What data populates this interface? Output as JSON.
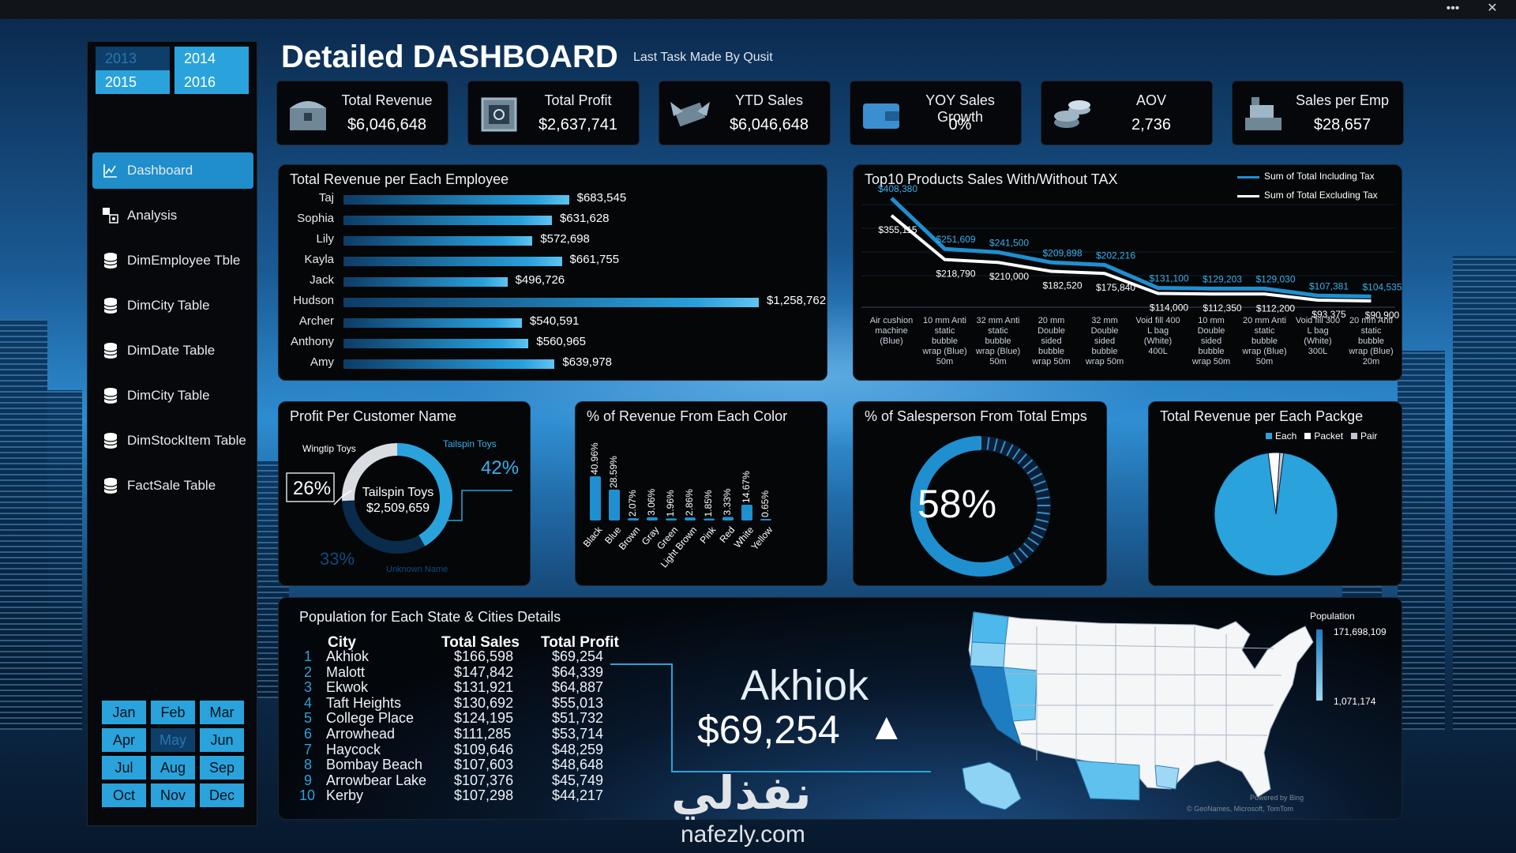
{
  "window": {
    "more_label": "•••",
    "close_label": "✕"
  },
  "header": {
    "title": "Detailed DASHBOARD",
    "subtitle": "Last Task Made By Qusit"
  },
  "years": [
    {
      "label": "2013",
      "selected": false
    },
    {
      "label": "2014",
      "selected": true
    },
    {
      "label": "2015",
      "selected": true
    },
    {
      "label": "2016",
      "selected": true
    }
  ],
  "nav": [
    {
      "label": "Dashboard",
      "icon": "chart-icon",
      "active": true
    },
    {
      "label": "Analysis",
      "icon": "analysis-icon",
      "active": false
    },
    {
      "label": "DimEmployee Tble",
      "icon": "database-icon",
      "active": false
    },
    {
      "label": "DimCity Table",
      "icon": "database-icon",
      "active": false
    },
    {
      "label": "DimDate Table",
      "icon": "database-icon",
      "active": false
    },
    {
      "label": "DimCity Table",
      "icon": "database-icon",
      "active": false
    },
    {
      "label": "DimStockItem Table",
      "icon": "database-icon",
      "active": false
    },
    {
      "label": "FactSale Table",
      "icon": "database-icon",
      "active": false
    }
  ],
  "months": [
    {
      "label": "Jan",
      "selected": true
    },
    {
      "label": "Feb",
      "selected": true
    },
    {
      "label": "Mar",
      "selected": true
    },
    {
      "label": "Apr",
      "selected": true
    },
    {
      "label": "May",
      "selected": false
    },
    {
      "label": "Jun",
      "selected": true
    },
    {
      "label": "Jul",
      "selected": true
    },
    {
      "label": "Aug",
      "selected": true
    },
    {
      "label": "Sep",
      "selected": true
    },
    {
      "label": "Oct",
      "selected": true
    },
    {
      "label": "Nov",
      "selected": true
    },
    {
      "label": "Dec",
      "selected": true
    }
  ],
  "kpis": [
    {
      "label": "Total Revenue",
      "value": "$6,046,648",
      "icon": "treasure-chest-icon"
    },
    {
      "label": "Total Profit",
      "value": "$2,637,741",
      "icon": "safe-icon"
    },
    {
      "label": "YTD Sales",
      "value": "$6,046,648",
      "icon": "flying-money-icon"
    },
    {
      "label": "YOY Sales Growth",
      "value": "0%",
      "icon": "wallet-icon"
    },
    {
      "label": "AOV",
      "value": "2,736",
      "icon": "coins-icon"
    },
    {
      "label": "Sales per Emp",
      "value": "$28,657",
      "icon": "cash-register-icon"
    }
  ],
  "employee_panel": {
    "title": "Total Revenue per Each Employee"
  },
  "products_panel": {
    "title": "Top10 Products Sales With/Without TAX",
    "legend_incl": "Sum of Total Including Tax",
    "legend_excl": "Sum of Total Excluding Tax"
  },
  "customer_panel": {
    "title": "Profit Per Customer Name",
    "left_label": "Wingtip Toys",
    "right_label": "Tailspin Toys",
    "left_pct": "26%",
    "right_pct": "42%",
    "bottom_pct": "33%",
    "bottom_label": "Unknown Name",
    "center_name": "Tailspin Toys",
    "center_value": "$2,509,659"
  },
  "color_panel": {
    "title": "% of Revenue From Each Color"
  },
  "salesperson_panel": {
    "title": "% of Salesperson From Total Emps",
    "value": "58%"
  },
  "package_panel": {
    "title": "Total Revenue per Each Packge",
    "legend": [
      "Each",
      "Packet",
      "Pair"
    ]
  },
  "population_panel": {
    "title": "Population  for Each State & Cities Details",
    "col_city": "City",
    "col_sales": "Total Sales",
    "col_profit": "Total Profit",
    "rows": [
      {
        "rank": "1",
        "city": "Akhiok",
        "sales": "$166,598",
        "profit": "$69,254"
      },
      {
        "rank": "2",
        "city": "Malott",
        "sales": "$147,842",
        "profit": "$64,339"
      },
      {
        "rank": "3",
        "city": "Ekwok",
        "sales": "$131,921",
        "profit": "$64,887"
      },
      {
        "rank": "4",
        "city": "Taft Heights",
        "sales": "$130,692",
        "profit": "$55,013"
      },
      {
        "rank": "5",
        "city": "College Place",
        "sales": "$124,195",
        "profit": "$51,732"
      },
      {
        "rank": "6",
        "city": "Arrowhead",
        "sales": "$111,285",
        "profit": "$53,714"
      },
      {
        "rank": "7",
        "city": "Haycock",
        "sales": "$109,646",
        "profit": "$48,259"
      },
      {
        "rank": "8",
        "city": "Bombay Beach",
        "sales": "$107,603",
        "profit": "$48,648"
      },
      {
        "rank": "9",
        "city": "Arrowbear Lake",
        "sales": "$107,376",
        "profit": "$45,749"
      },
      {
        "rank": "10",
        "city": "Kerby",
        "sales": "$107,298",
        "profit": "$44,217"
      }
    ],
    "highlight_city": "Akhiok",
    "highlight_value": "$69,254",
    "highlight_arrow": "▲",
    "map_legend_title": "Population",
    "map_legend_max": "171,698,109",
    "map_legend_min": "1,071,174",
    "map_credit_1": "Powered by Bing",
    "map_credit_2": "© GeoNames, Microsoft, TomTom"
  },
  "watermark": {
    "arabic": "نفذلي",
    "latin": "nafezly.com"
  },
  "chart_data": [
    {
      "type": "bar",
      "title": "Total Revenue per Each Employee",
      "categories": [
        "Taj",
        "Sophia",
        "Lily",
        "Kayla",
        "Jack",
        "Hudson",
        "Archer",
        "Anthony",
        "Amy"
      ],
      "values": [
        683545,
        631628,
        572698,
        661755,
        496726,
        1258762,
        540591,
        560965,
        639978
      ],
      "labels": [
        "$683,545",
        "$631,628",
        "$572,698",
        "$661,755",
        "$496,726",
        "$1,258,762",
        "$540,591",
        "$560,965",
        "$639,978"
      ],
      "orientation": "horizontal"
    },
    {
      "type": "line",
      "title": "Top10 Products Sales With/Without TAX",
      "categories": [
        [
          "Air cushion",
          "machine",
          "(Blue)"
        ],
        [
          "10 mm Anti",
          "static",
          "bubble",
          "wrap (Blue)",
          "50m"
        ],
        [
          "32 mm Anti",
          "static",
          "bubble",
          "wrap (Blue)",
          "50m"
        ],
        [
          "20 mm",
          "Double",
          "sided",
          "bubble",
          "wrap 50m"
        ],
        [
          "32 mm",
          "Double",
          "sided",
          "bubble",
          "wrap 50m"
        ],
        [
          "Void fill 400",
          "L bag",
          "(White)",
          "400L"
        ],
        [
          "10 mm",
          "Double",
          "sided",
          "bubble",
          "wrap 50m"
        ],
        [
          "20 mm Anti",
          "static",
          "bubble",
          "wrap (Blue)",
          "50m"
        ],
        [
          "Void fill 300",
          "L bag",
          "(White)",
          "300L"
        ],
        [
          "20 mm Anti",
          "static",
          "bubble",
          "wrap (Blue)",
          "20m"
        ]
      ],
      "series": [
        {
          "name": "Sum of Total Including Tax",
          "values": [
            408380,
            251609,
            241500,
            209898,
            202216,
            131100,
            129203,
            129030,
            107381,
            104535
          ],
          "labels": [
            "$408,380",
            "$251,609",
            "$241,500",
            "$209,898",
            "$202,216",
            "$131,100",
            "$129,203",
            "$129,030",
            "$107,381",
            "$104,535"
          ],
          "color": "#1f8fd0"
        },
        {
          "name": "Sum of Total Excluding Tax",
          "values": [
            355115,
            218790,
            210000,
            182520,
            175840,
            114000,
            112350,
            112200,
            93375,
            90900
          ],
          "labels": [
            "$355,115",
            "$218,790",
            "$210,000",
            "$182,520",
            "$175,840",
            "$114,000",
            "$112,350",
            "$112,200",
            "$93,375",
            "$90,900"
          ],
          "color": "#ffffff"
        }
      ]
    },
    {
      "type": "pie",
      "title": "Profit Per Customer Name",
      "categories": [
        "Tailspin Toys",
        "Unknown Name",
        "Wingtip Toys"
      ],
      "values": [
        42,
        33,
        26
      ]
    },
    {
      "type": "bar",
      "title": "% of Revenue From Each Color",
      "categories": [
        "Black",
        "Blue",
        "Brown",
        "Gray",
        "Green",
        "Light Brown",
        "Pink",
        "Red",
        "White",
        "Yellow"
      ],
      "values": [
        40.96,
        28.59,
        2.07,
        3.06,
        1.96,
        2.86,
        1.85,
        3.33,
        14.67,
        0.65
      ],
      "labels": [
        "40.96%",
        "28.59%",
        "2.07%",
        "3.06%",
        "1.96%",
        "2.86%",
        "1.85%",
        "3.33%",
        "14.67%",
        "0.65%"
      ]
    },
    {
      "type": "pie",
      "title": "% of Salesperson From Total Emps",
      "values": [
        58,
        42
      ]
    },
    {
      "type": "pie",
      "title": "Total Revenue per Each Packge",
      "categories": [
        "Each",
        "Packet",
        "Pair"
      ],
      "values": [
        96,
        3,
        1
      ]
    }
  ],
  "colors": {
    "accent": "#2aa3dc",
    "dark_accent": "#0d3f6a",
    "panel_bg": "#040608"
  }
}
